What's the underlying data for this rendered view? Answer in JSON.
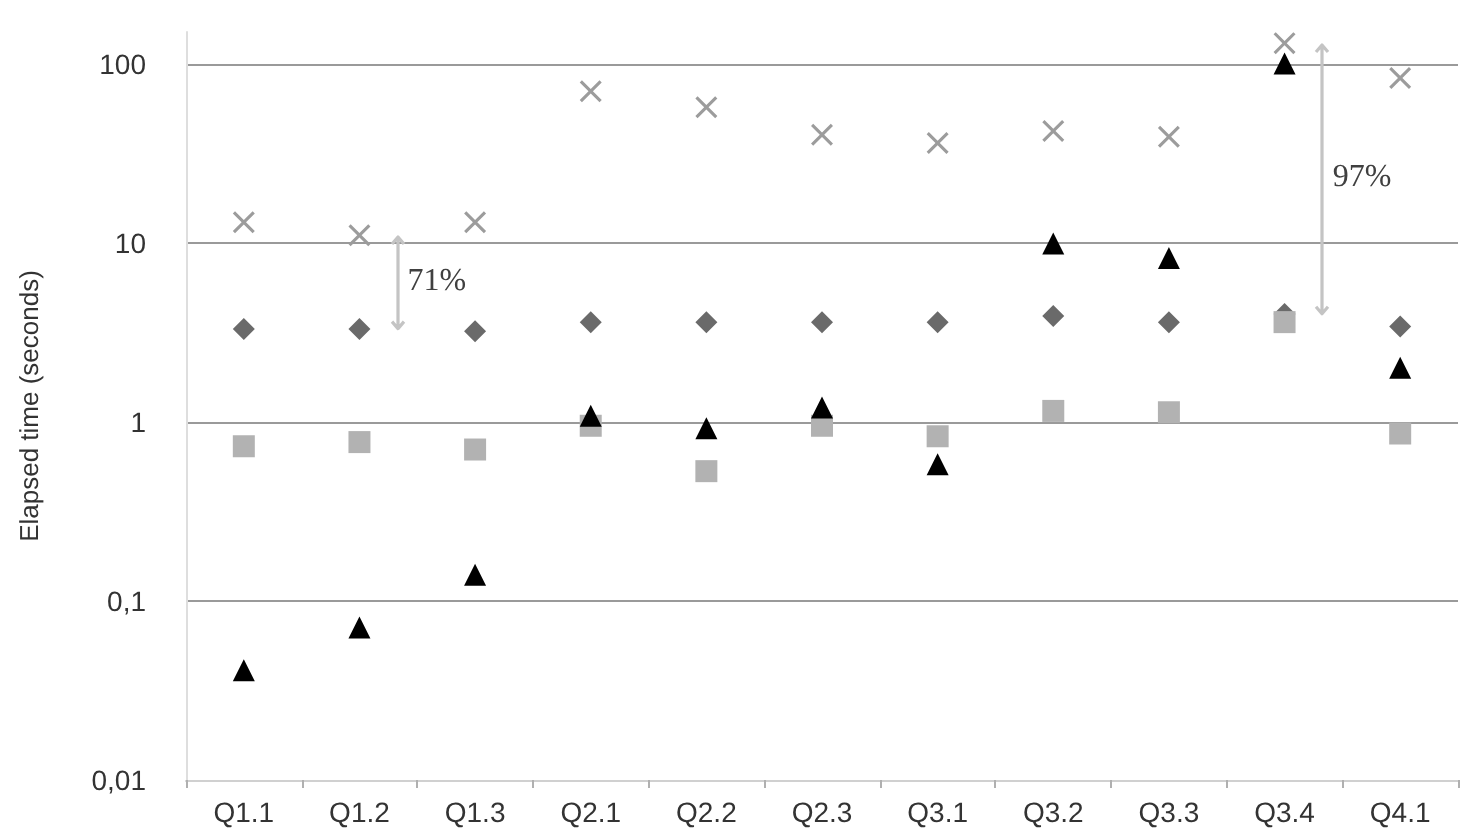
{
  "chart_data": {
    "type": "scatter",
    "ylabel": "Elapsed time (seconds)",
    "categories": [
      "Q1.1",
      "Q1.2",
      "Q1.3",
      "Q2.1",
      "Q2.2",
      "Q2.3",
      "Q3.1",
      "Q3.2",
      "Q3.3",
      "Q3.4",
      "Q4.1"
    ],
    "series": [
      {
        "color": "#9c9c9c",
        "marker": "cross",
        "values": [
          13,
          11,
          13,
          70,
          57,
          40,
          36,
          42,
          39,
          130,
          83
        ]
      },
      {
        "color": "#6a6a6a",
        "marker": "diamond",
        "values": [
          3.3,
          3.3,
          3.2,
          3.6,
          3.6,
          3.6,
          3.6,
          3.9,
          3.6,
          4.0,
          3.4
        ]
      },
      {
        "color": "#b2b2b2",
        "marker": "square",
        "values": [
          0.73,
          0.77,
          0.7,
          0.95,
          0.53,
          0.95,
          0.83,
          1.15,
          1.13,
          3.6,
          0.86
        ]
      },
      {
        "color": "#000000",
        "marker": "triangle",
        "values": [
          0.041,
          0.071,
          0.14,
          1.08,
          0.92,
          1.2,
          0.58,
          9.9,
          8.2,
          100,
          2.0
        ]
      }
    ],
    "ylim": [
      0.01,
      150
    ],
    "yticks": [
      {
        "value": 0.01,
        "label": "0,01"
      },
      {
        "value": 0.1,
        "label": "0,1"
      },
      1,
      10,
      100
    ],
    "log": "y",
    "grid": "y",
    "annotations": [
      "71%",
      "97%"
    ]
  }
}
